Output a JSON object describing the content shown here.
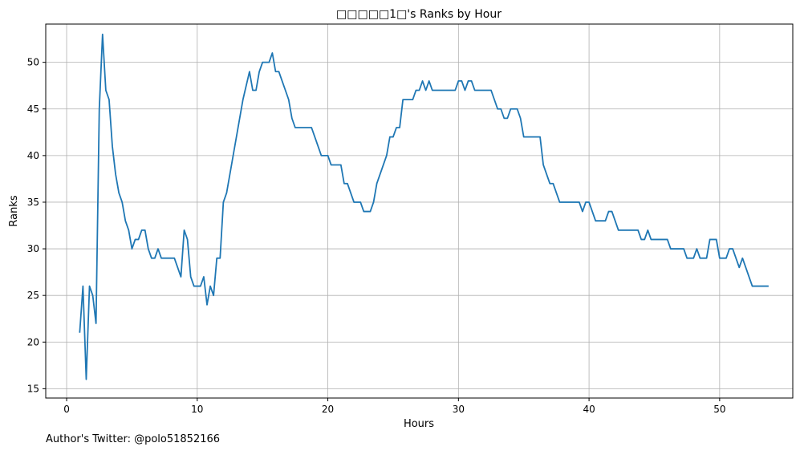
{
  "chart_data": {
    "type": "line",
    "title": "□□□□□1□'s Ranks by Hour",
    "xlabel": "Hours",
    "ylabel": "Ranks",
    "xlim": [
      -1.6,
      55.6
    ],
    "ylim": [
      14.0,
      54.1
    ],
    "xticks": [
      0,
      10,
      20,
      30,
      40,
      50
    ],
    "yticks": [
      15,
      20,
      25,
      30,
      35,
      40,
      45,
      50
    ],
    "grid": true,
    "line_color": "#1f77b4",
    "series": [
      {
        "points": [
          [
            1.0,
            21
          ],
          [
            1.25,
            26
          ],
          [
            1.5,
            16
          ],
          [
            1.75,
            26
          ],
          [
            2.0,
            25
          ],
          [
            2.25,
            22
          ],
          [
            2.5,
            45
          ],
          [
            2.75,
            53
          ],
          [
            3.0,
            47
          ],
          [
            3.25,
            46
          ],
          [
            3.5,
            41
          ],
          [
            3.75,
            38
          ],
          [
            4.0,
            36
          ],
          [
            4.25,
            35
          ],
          [
            4.5,
            33
          ],
          [
            4.75,
            32
          ],
          [
            5.0,
            30
          ],
          [
            5.25,
            31
          ],
          [
            5.5,
            31
          ],
          [
            5.75,
            32
          ],
          [
            6.0,
            32
          ],
          [
            6.25,
            30
          ],
          [
            6.5,
            29
          ],
          [
            6.75,
            29
          ],
          [
            7.0,
            30
          ],
          [
            7.25,
            29
          ],
          [
            7.5,
            29
          ],
          [
            7.75,
            29
          ],
          [
            8.0,
            29
          ],
          [
            8.25,
            29
          ],
          [
            8.5,
            28
          ],
          [
            8.75,
            27
          ],
          [
            9.0,
            32
          ],
          [
            9.25,
            31
          ],
          [
            9.5,
            27
          ],
          [
            9.75,
            26
          ],
          [
            10.0,
            26
          ],
          [
            10.25,
            26
          ],
          [
            10.5,
            27
          ],
          [
            10.75,
            24
          ],
          [
            11.0,
            26
          ],
          [
            11.25,
            25
          ],
          [
            11.5,
            29
          ],
          [
            11.75,
            29
          ],
          [
            12.0,
            35
          ],
          [
            12.25,
            36
          ],
          [
            12.5,
            38
          ],
          [
            12.75,
            40
          ],
          [
            13.0,
            42
          ],
          [
            13.25,
            44
          ],
          [
            13.5,
            46
          ],
          [
            13.75,
            47.5
          ],
          [
            14.0,
            49
          ],
          [
            14.25,
            47
          ],
          [
            14.5,
            47
          ],
          [
            14.75,
            49
          ],
          [
            15.0,
            50
          ],
          [
            15.25,
            50
          ],
          [
            15.5,
            50
          ],
          [
            15.75,
            51
          ],
          [
            16.0,
            49
          ],
          [
            16.25,
            49
          ],
          [
            16.5,
            48
          ],
          [
            16.75,
            47
          ],
          [
            17.0,
            46
          ],
          [
            17.25,
            44
          ],
          [
            17.5,
            43
          ],
          [
            17.75,
            43
          ],
          [
            18.0,
            43
          ],
          [
            18.5,
            43
          ],
          [
            18.75,
            43
          ],
          [
            19.0,
            42
          ],
          [
            19.25,
            41
          ],
          [
            19.5,
            40
          ],
          [
            19.75,
            40
          ],
          [
            20.0,
            40
          ],
          [
            20.25,
            39
          ],
          [
            20.5,
            39
          ],
          [
            20.75,
            39
          ],
          [
            21.0,
            39
          ],
          [
            21.25,
            37
          ],
          [
            21.5,
            37
          ],
          [
            21.75,
            36
          ],
          [
            22.0,
            35
          ],
          [
            22.25,
            35
          ],
          [
            22.5,
            35
          ],
          [
            22.75,
            34
          ],
          [
            23.0,
            34
          ],
          [
            23.25,
            34
          ],
          [
            23.5,
            35
          ],
          [
            23.75,
            37
          ],
          [
            24.0,
            38
          ],
          [
            24.25,
            39
          ],
          [
            24.5,
            40
          ],
          [
            24.75,
            42
          ],
          [
            25.0,
            42
          ],
          [
            25.25,
            43
          ],
          [
            25.5,
            43
          ],
          [
            25.75,
            46
          ],
          [
            26.0,
            46
          ],
          [
            26.25,
            46
          ],
          [
            26.5,
            46
          ],
          [
            26.75,
            47
          ],
          [
            27.0,
            47
          ],
          [
            27.25,
            48
          ],
          [
            27.5,
            47
          ],
          [
            27.75,
            48
          ],
          [
            28.0,
            47
          ],
          [
            28.25,
            47
          ],
          [
            28.5,
            47
          ],
          [
            28.75,
            47
          ],
          [
            29.0,
            47
          ],
          [
            29.25,
            47
          ],
          [
            29.5,
            47
          ],
          [
            29.75,
            47
          ],
          [
            30.0,
            48
          ],
          [
            30.25,
            48
          ],
          [
            30.5,
            47
          ],
          [
            30.75,
            48
          ],
          [
            31.0,
            48
          ],
          [
            31.25,
            47
          ],
          [
            31.5,
            47
          ],
          [
            31.75,
            47
          ],
          [
            32.0,
            47
          ],
          [
            32.25,
            47
          ],
          [
            32.5,
            47
          ],
          [
            32.75,
            46
          ],
          [
            33.0,
            45
          ],
          [
            33.25,
            45
          ],
          [
            33.5,
            44
          ],
          [
            33.75,
            44
          ],
          [
            34.0,
            45
          ],
          [
            34.25,
            45
          ],
          [
            34.5,
            45
          ],
          [
            34.75,
            44
          ],
          [
            35.0,
            42
          ],
          [
            35.25,
            42
          ],
          [
            35.5,
            42
          ],
          [
            35.75,
            42
          ],
          [
            36.0,
            42
          ],
          [
            36.25,
            42
          ],
          [
            36.5,
            39
          ],
          [
            36.75,
            38
          ],
          [
            37.0,
            37
          ],
          [
            37.25,
            37
          ],
          [
            37.5,
            36
          ],
          [
            37.75,
            35
          ],
          [
            38.0,
            35
          ],
          [
            38.25,
            35
          ],
          [
            38.5,
            35
          ],
          [
            38.75,
            35
          ],
          [
            39.0,
            35
          ],
          [
            39.25,
            35
          ],
          [
            39.5,
            34
          ],
          [
            39.75,
            35
          ],
          [
            40.0,
            35
          ],
          [
            40.25,
            34
          ],
          [
            40.5,
            33
          ],
          [
            40.75,
            33
          ],
          [
            41.0,
            33
          ],
          [
            41.25,
            33
          ],
          [
            41.5,
            34
          ],
          [
            41.75,
            34
          ],
          [
            42.0,
            33
          ],
          [
            42.25,
            32
          ],
          [
            42.5,
            32
          ],
          [
            42.75,
            32
          ],
          [
            43.0,
            32
          ],
          [
            43.25,
            32
          ],
          [
            43.5,
            32
          ],
          [
            43.75,
            32
          ],
          [
            44.0,
            31
          ],
          [
            44.25,
            31
          ],
          [
            44.5,
            32
          ],
          [
            44.75,
            31
          ],
          [
            45.0,
            31
          ],
          [
            45.25,
            31
          ],
          [
            45.5,
            31
          ],
          [
            45.75,
            31
          ],
          [
            46.0,
            31
          ],
          [
            46.25,
            30
          ],
          [
            46.5,
            30
          ],
          [
            46.75,
            30
          ],
          [
            47.0,
            30
          ],
          [
            47.25,
            30
          ],
          [
            47.5,
            29
          ],
          [
            47.75,
            29
          ],
          [
            48.0,
            29
          ],
          [
            48.25,
            30
          ],
          [
            48.5,
            29
          ],
          [
            48.75,
            29
          ],
          [
            49.0,
            29
          ],
          [
            49.25,
            31
          ],
          [
            49.5,
            31
          ],
          [
            49.75,
            31
          ],
          [
            50.0,
            29
          ],
          [
            50.25,
            29
          ],
          [
            50.5,
            29
          ],
          [
            50.75,
            30
          ],
          [
            51.0,
            30
          ],
          [
            51.25,
            29
          ],
          [
            51.5,
            28
          ],
          [
            51.75,
            29
          ],
          [
            52.0,
            28
          ],
          [
            52.25,
            27
          ],
          [
            52.5,
            26
          ],
          [
            52.75,
            26
          ],
          [
            53.0,
            26
          ],
          [
            53.25,
            26
          ],
          [
            53.5,
            26
          ],
          [
            53.75,
            26
          ]
        ]
      }
    ]
  },
  "footer": {
    "author_text": "Author's Twitter: @polo51852166"
  }
}
